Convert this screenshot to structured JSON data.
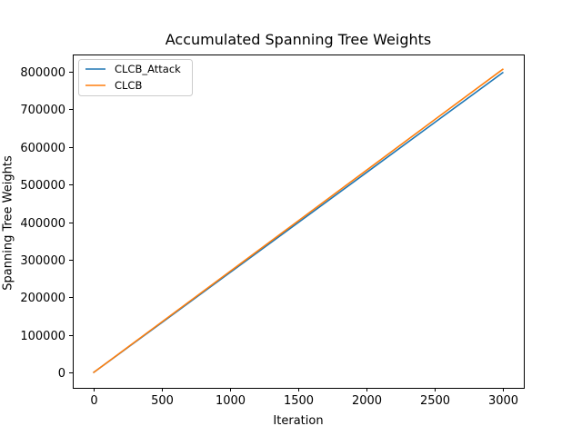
{
  "chart_data": {
    "type": "line",
    "title": "Accumulated Spanning Tree Weights",
    "xlabel": "Iteration",
    "ylabel": "Spanning Tree Weights",
    "xlim": [
      -150,
      3150
    ],
    "ylim": [
      -40000,
      845000
    ],
    "xticks": [
      0,
      500,
      1000,
      1500,
      2000,
      2500,
      3000
    ],
    "yticks": [
      0,
      100000,
      200000,
      300000,
      400000,
      500000,
      600000,
      700000,
      800000
    ],
    "grid": false,
    "legend_position": "top-left",
    "series": [
      {
        "name": "CLCB_Attack",
        "color": "#1f77b4",
        "x": [
          0,
          500,
          1000,
          1500,
          2000,
          2500,
          3000
        ],
        "y": [
          0,
          133000,
          266000,
          399000,
          532000,
          665000,
          798000
        ]
      },
      {
        "name": "CLCB",
        "color": "#ff7f0e",
        "x": [
          0,
          500,
          1000,
          1500,
          2000,
          2500,
          3000
        ],
        "y": [
          0,
          134500,
          269000,
          403500,
          538000,
          672500,
          807000
        ]
      }
    ]
  }
}
